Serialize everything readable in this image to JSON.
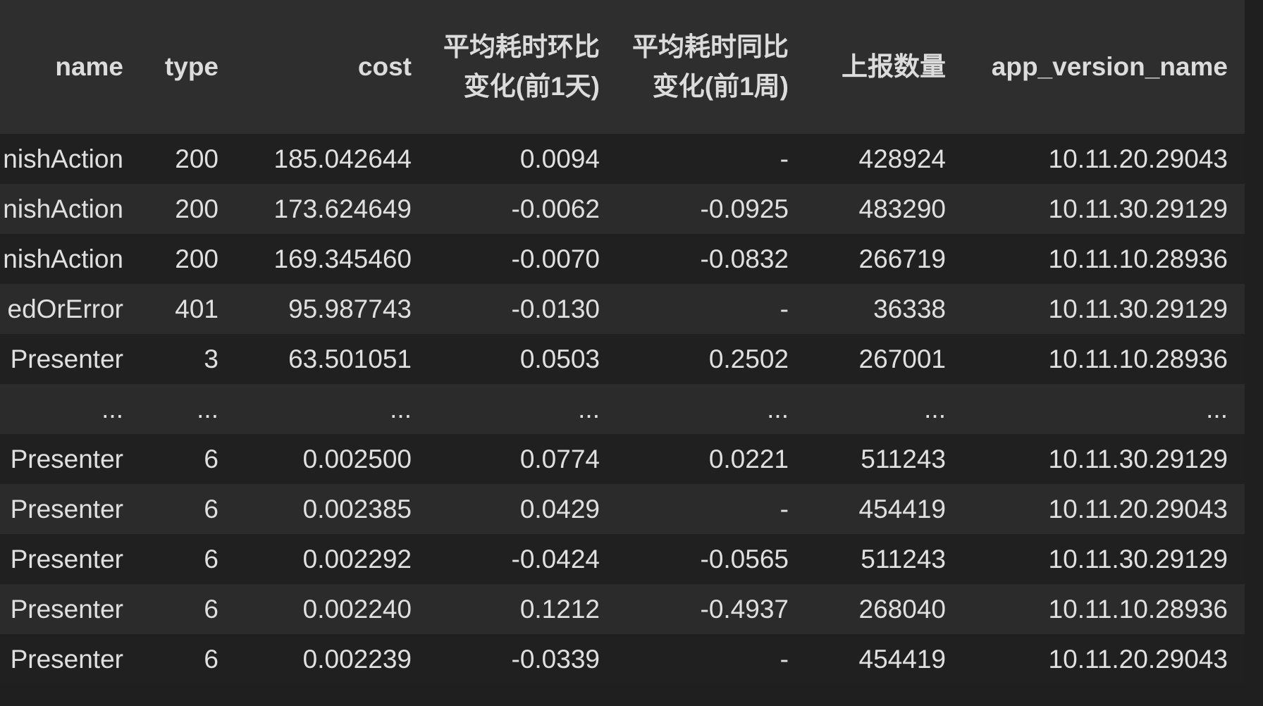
{
  "table": {
    "columns": [
      "name",
      "type",
      "cost",
      "平均耗时环比变化(前1天)",
      "平均耗时同比变化(前1周)",
      "上报数量",
      "app_version_name"
    ],
    "rows": [
      [
        "nishAction",
        "200",
        "185.042644",
        "0.0094",
        "-",
        "428924",
        "10.11.20.29043"
      ],
      [
        "nishAction",
        "200",
        "173.624649",
        "-0.0062",
        "-0.0925",
        "483290",
        "10.11.30.29129"
      ],
      [
        "nishAction",
        "200",
        "169.345460",
        "-0.0070",
        "-0.0832",
        "266719",
        "10.11.10.28936"
      ],
      [
        "edOrError",
        "401",
        "95.987743",
        "-0.0130",
        "-",
        "36338",
        "10.11.30.29129"
      ],
      [
        "Presenter",
        "3",
        "63.501051",
        "0.0503",
        "0.2502",
        "267001",
        "10.11.10.28936"
      ],
      [
        "...",
        "...",
        "...",
        "...",
        "...",
        "...",
        "..."
      ],
      [
        "Presenter",
        "6",
        "0.002500",
        "0.0774",
        "0.0221",
        "511243",
        "10.11.30.29129"
      ],
      [
        "Presenter",
        "6",
        "0.002385",
        "0.0429",
        "-",
        "454419",
        "10.11.20.29043"
      ],
      [
        "Presenter",
        "6",
        "0.002292",
        "-0.0424",
        "-0.0565",
        "511243",
        "10.11.30.29129"
      ],
      [
        "Presenter",
        "6",
        "0.002240",
        "0.1212",
        "-0.4937",
        "268040",
        "10.11.10.28936"
      ],
      [
        "Presenter",
        "6",
        "0.002239",
        "-0.0339",
        "-",
        "454419",
        "10.11.20.29043"
      ]
    ]
  }
}
